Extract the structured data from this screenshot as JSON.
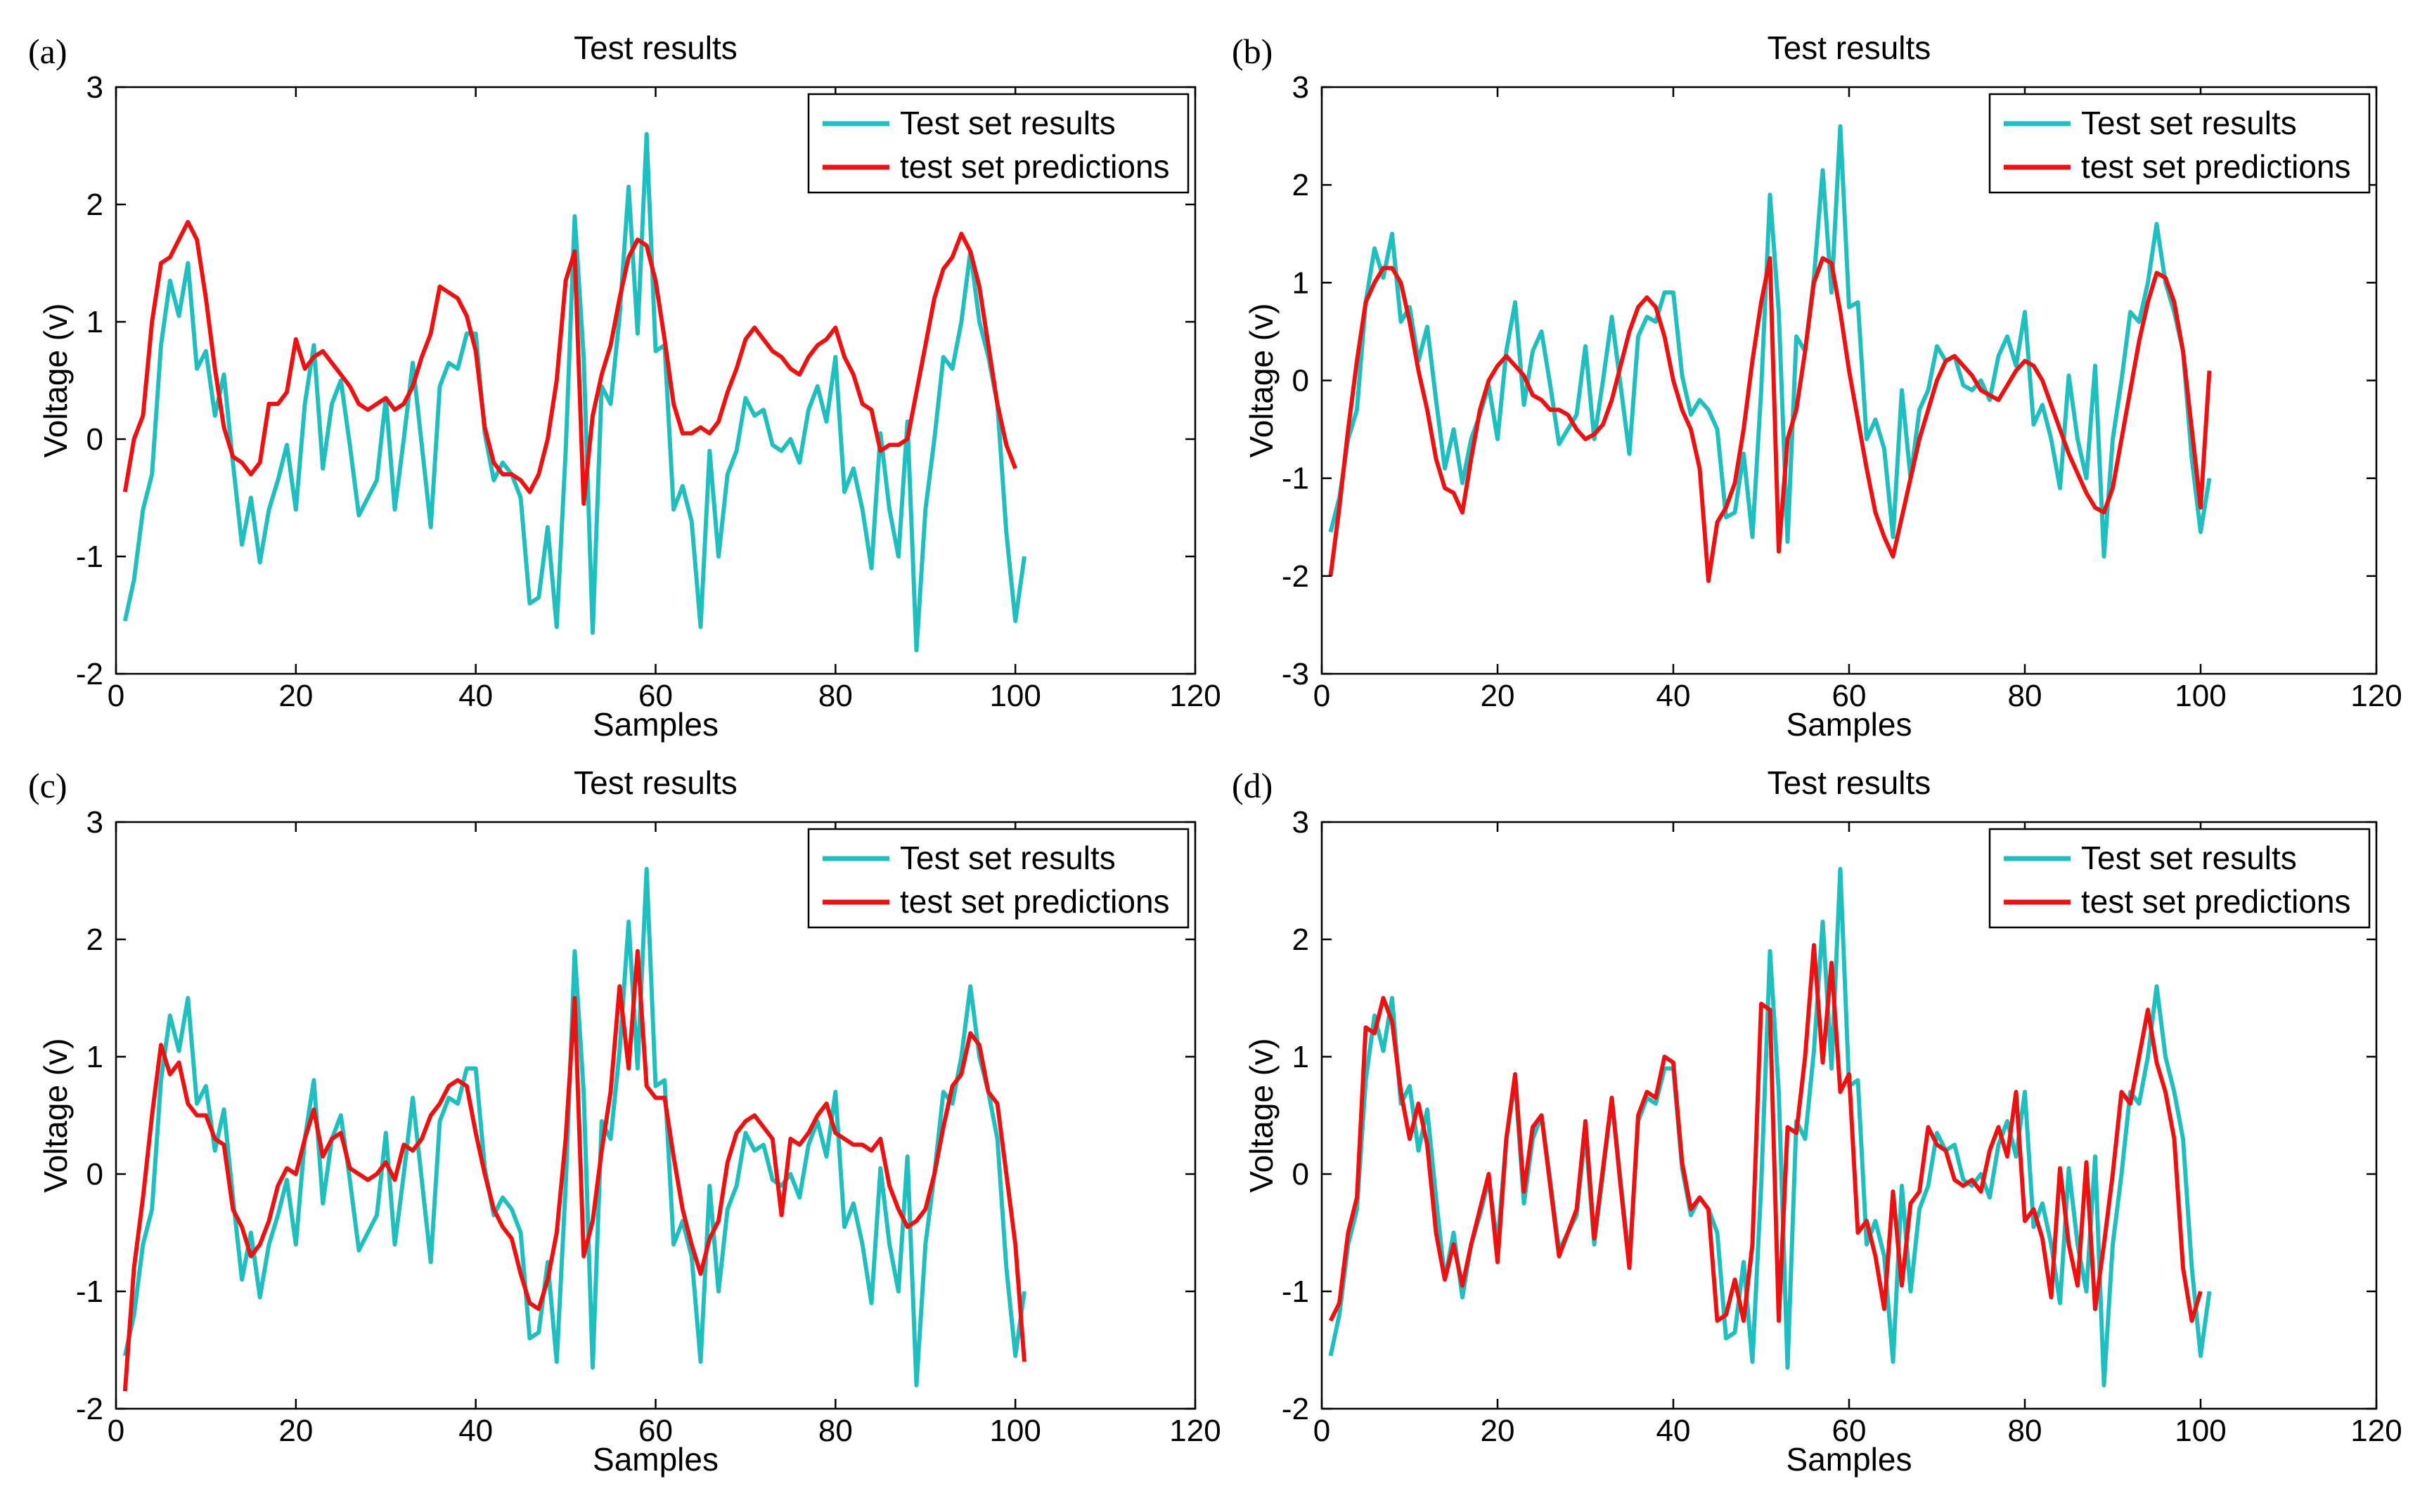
{
  "colors": {
    "results": "#1fbfbf",
    "predictions": "#ee1111"
  },
  "chart_data": [
    {
      "type": "line",
      "panel_label": "(a)",
      "title": "Test results",
      "xlabel": "Samples",
      "ylabel": "Voltage (v)",
      "xlim": [
        0,
        120
      ],
      "ylim": [
        -2,
        3
      ],
      "xticks": [
        0,
        20,
        40,
        60,
        80,
        100,
        120
      ],
      "yticks": [
        -2,
        -1,
        0,
        1,
        2,
        3
      ],
      "legend_position": "top-right",
      "series": [
        {
          "name": "Test set results",
          "color": "#1fbfbf",
          "x_start": 1,
          "values": [
            -1.55,
            -1.2,
            -0.6,
            -0.3,
            0.8,
            1.35,
            1.05,
            1.5,
            0.6,
            0.75,
            0.2,
            0.55,
            -0.2,
            -0.9,
            -0.5,
            -1.05,
            -0.6,
            -0.35,
            -0.05,
            -0.6,
            0.3,
            0.8,
            -0.25,
            0.3,
            0.5,
            -0.05,
            -0.65,
            -0.5,
            -0.35,
            0.35,
            -0.6,
            0.0,
            0.65,
            -0.05,
            -0.75,
            0.45,
            0.65,
            0.6,
            0.9,
            0.9,
            0.05,
            -0.35,
            -0.2,
            -0.3,
            -0.5,
            -1.4,
            -1.35,
            -0.75,
            -1.6,
            -0.1,
            1.9,
            0.7,
            -1.65,
            0.45,
            0.3,
            1.05,
            2.15,
            0.9,
            2.6,
            0.75,
            0.8,
            -0.6,
            -0.4,
            -0.7,
            -1.6,
            -0.1,
            -1.0,
            -0.3,
            -0.1,
            0.35,
            0.2,
            0.25,
            -0.05,
            -0.1,
            0.0,
            -0.2,
            0.25,
            0.45,
            0.15,
            0.7,
            -0.45,
            -0.25,
            -0.6,
            -1.1,
            0.05,
            -0.6,
            -1.0,
            0.15,
            -1.8,
            -0.6,
            0.0,
            0.7,
            0.6,
            1.0,
            1.6,
            1.0,
            0.7,
            0.3,
            -0.8,
            -1.55,
            -1.0
          ]
        },
        {
          "name": "test set predictions",
          "color": "#ee1111",
          "x_start": 1,
          "values": [
            -0.45,
            0.0,
            0.2,
            1.0,
            1.5,
            1.55,
            1.7,
            1.85,
            1.7,
            1.2,
            0.6,
            0.1,
            -0.15,
            -0.2,
            -0.3,
            -0.2,
            0.3,
            0.3,
            0.4,
            0.85,
            0.6,
            0.7,
            0.75,
            0.65,
            0.55,
            0.45,
            0.3,
            0.25,
            0.3,
            0.35,
            0.25,
            0.3,
            0.45,
            0.7,
            0.9,
            1.3,
            1.25,
            1.2,
            1.05,
            0.75,
            0.1,
            -0.2,
            -0.3,
            -0.3,
            -0.35,
            -0.45,
            -0.3,
            0.0,
            0.5,
            1.35,
            1.6,
            -0.55,
            0.2,
            0.55,
            0.8,
            1.2,
            1.55,
            1.7,
            1.65,
            1.35,
            0.85,
            0.3,
            0.05,
            0.05,
            0.1,
            0.05,
            0.15,
            0.4,
            0.6,
            0.85,
            0.95,
            0.85,
            0.75,
            0.7,
            0.6,
            0.55,
            0.7,
            0.8,
            0.85,
            0.95,
            0.7,
            0.55,
            0.3,
            0.25,
            -0.1,
            -0.05,
            -0.05,
            0.0,
            0.4,
            0.8,
            1.2,
            1.45,
            1.55,
            1.75,
            1.6,
            1.3,
            0.8,
            0.3,
            -0.05,
            -0.25
          ]
        }
      ]
    },
    {
      "type": "line",
      "panel_label": "(b)",
      "title": "Test results",
      "xlabel": "Samples",
      "ylabel": "Voltage (v)",
      "xlim": [
        0,
        120
      ],
      "ylim": [
        -3,
        3
      ],
      "xticks": [
        0,
        20,
        40,
        60,
        80,
        100,
        120
      ],
      "yticks": [
        -3,
        -2,
        -1,
        0,
        1,
        2,
        3
      ],
      "legend_position": "top-right",
      "series": [
        {
          "name": "Test set results",
          "color": "#1fbfbf",
          "x_start": 1,
          "values": [
            -1.55,
            -1.2,
            -0.6,
            -0.3,
            0.8,
            1.35,
            1.05,
            1.5,
            0.6,
            0.75,
            0.2,
            0.55,
            -0.2,
            -0.9,
            -0.5,
            -1.05,
            -0.6,
            -0.35,
            -0.05,
            -0.6,
            0.3,
            0.8,
            -0.25,
            0.3,
            0.5,
            -0.05,
            -0.65,
            -0.5,
            -0.35,
            0.35,
            -0.6,
            0.0,
            0.65,
            -0.05,
            -0.75,
            0.45,
            0.65,
            0.6,
            0.9,
            0.9,
            0.05,
            -0.35,
            -0.2,
            -0.3,
            -0.5,
            -1.4,
            -1.35,
            -0.75,
            -1.6,
            -0.1,
            1.9,
            0.7,
            -1.65,
            0.45,
            0.3,
            1.05,
            2.15,
            0.9,
            2.6,
            0.75,
            0.8,
            -0.6,
            -0.4,
            -0.7,
            -1.6,
            -0.1,
            -1.0,
            -0.3,
            -0.1,
            0.35,
            0.2,
            0.25,
            -0.05,
            -0.1,
            0.0,
            -0.2,
            0.25,
            0.45,
            0.15,
            0.7,
            -0.45,
            -0.25,
            -0.6,
            -1.1,
            0.05,
            -0.6,
            -1.0,
            0.15,
            -1.8,
            -0.6,
            0.0,
            0.7,
            0.6,
            1.0,
            1.6,
            1.0,
            0.7,
            0.3,
            -0.8,
            -1.55,
            -1.0
          ]
        },
        {
          "name": "test set predictions",
          "color": "#ee1111",
          "x_start": 1,
          "values": [
            -2.0,
            -1.3,
            -0.5,
            0.2,
            0.8,
            1.0,
            1.15,
            1.15,
            1.0,
            0.6,
            0.1,
            -0.3,
            -0.8,
            -1.1,
            -1.15,
            -1.35,
            -0.8,
            -0.3,
            0.0,
            0.15,
            0.25,
            0.15,
            0.05,
            -0.15,
            -0.2,
            -0.3,
            -0.3,
            -0.35,
            -0.5,
            -0.6,
            -0.55,
            -0.45,
            -0.2,
            0.15,
            0.5,
            0.75,
            0.85,
            0.75,
            0.45,
            0.0,
            -0.3,
            -0.5,
            -0.9,
            -2.05,
            -1.45,
            -1.3,
            -1.05,
            -0.5,
            0.2,
            0.8,
            1.25,
            -1.75,
            -0.6,
            -0.3,
            0.3,
            1.0,
            1.25,
            1.2,
            0.7,
            0.1,
            -0.4,
            -0.9,
            -1.35,
            -1.6,
            -1.8,
            -1.4,
            -1.0,
            -0.6,
            -0.3,
            0.0,
            0.2,
            0.25,
            0.15,
            0.05,
            -0.1,
            -0.15,
            -0.2,
            -0.05,
            0.1,
            0.2,
            0.15,
            0.0,
            -0.25,
            -0.5,
            -0.75,
            -0.95,
            -1.15,
            -1.3,
            -1.35,
            -1.1,
            -0.6,
            -0.1,
            0.4,
            0.8,
            1.1,
            1.05,
            0.8,
            0.3,
            -0.5,
            -1.3,
            0.1
          ]
        }
      ]
    },
    {
      "type": "line",
      "panel_label": "(c)",
      "title": "Test results",
      "xlabel": "Samples",
      "ylabel": "Voltage (v)",
      "xlim": [
        0,
        120
      ],
      "ylim": [
        -2,
        3
      ],
      "xticks": [
        0,
        20,
        40,
        60,
        80,
        100,
        120
      ],
      "yticks": [
        -2,
        -1,
        0,
        1,
        2,
        3
      ],
      "legend_position": "top-right",
      "series": [
        {
          "name": "Test set results",
          "color": "#1fbfbf",
          "x_start": 1,
          "values": [
            -1.55,
            -1.2,
            -0.6,
            -0.3,
            0.8,
            1.35,
            1.05,
            1.5,
            0.6,
            0.75,
            0.2,
            0.55,
            -0.2,
            -0.9,
            -0.5,
            -1.05,
            -0.6,
            -0.35,
            -0.05,
            -0.6,
            0.3,
            0.8,
            -0.25,
            0.3,
            0.5,
            -0.05,
            -0.65,
            -0.5,
            -0.35,
            0.35,
            -0.6,
            0.0,
            0.65,
            -0.05,
            -0.75,
            0.45,
            0.65,
            0.6,
            0.9,
            0.9,
            0.05,
            -0.35,
            -0.2,
            -0.3,
            -0.5,
            -1.4,
            -1.35,
            -0.75,
            -1.6,
            -0.1,
            1.9,
            0.7,
            -1.65,
            0.45,
            0.3,
            1.05,
            2.15,
            0.9,
            2.6,
            0.75,
            0.8,
            -0.6,
            -0.4,
            -0.7,
            -1.6,
            -0.1,
            -1.0,
            -0.3,
            -0.1,
            0.35,
            0.2,
            0.25,
            -0.05,
            -0.1,
            0.0,
            -0.2,
            0.25,
            0.45,
            0.15,
            0.7,
            -0.45,
            -0.25,
            -0.6,
            -1.1,
            0.05,
            -0.6,
            -1.0,
            0.15,
            -1.8,
            -0.6,
            0.0,
            0.7,
            0.6,
            1.0,
            1.6,
            1.0,
            0.7,
            0.3,
            -0.8,
            -1.55,
            -1.0
          ]
        },
        {
          "name": "test set predictions",
          "color": "#ee1111",
          "x_start": 1,
          "values": [
            -1.85,
            -0.8,
            -0.2,
            0.5,
            1.1,
            0.85,
            0.95,
            0.6,
            0.5,
            0.5,
            0.3,
            0.25,
            -0.3,
            -0.45,
            -0.7,
            -0.6,
            -0.4,
            -0.1,
            0.05,
            0.0,
            0.3,
            0.55,
            0.15,
            0.3,
            0.35,
            0.05,
            0.0,
            -0.05,
            0.0,
            0.1,
            -0.05,
            0.25,
            0.2,
            0.3,
            0.5,
            0.6,
            0.75,
            0.8,
            0.75,
            0.35,
            0.0,
            -0.3,
            -0.45,
            -0.55,
            -0.85,
            -1.1,
            -1.15,
            -0.9,
            -0.5,
            0.3,
            1.5,
            -0.7,
            -0.4,
            0.2,
            0.7,
            1.6,
            0.9,
            1.9,
            0.75,
            0.65,
            0.65,
            0.15,
            -0.3,
            -0.6,
            -0.85,
            -0.55,
            -0.4,
            0.1,
            0.35,
            0.45,
            0.5,
            0.4,
            0.3,
            -0.35,
            0.3,
            0.25,
            0.35,
            0.5,
            0.6,
            0.35,
            0.3,
            0.25,
            0.25,
            0.2,
            0.3,
            -0.1,
            -0.3,
            -0.45,
            -0.4,
            -0.3,
            0.0,
            0.4,
            0.75,
            0.85,
            1.2,
            1.1,
            0.7,
            0.6,
            0.0,
            -0.6,
            -1.6
          ]
        }
      ]
    },
    {
      "type": "line",
      "panel_label": "(d)",
      "title": "Test results",
      "xlabel": "Samples",
      "ylabel": "Voltage (v)",
      "xlim": [
        0,
        120
      ],
      "ylim": [
        -2,
        3
      ],
      "xticks": [
        0,
        20,
        40,
        60,
        80,
        100,
        120
      ],
      "yticks": [
        -2,
        -1,
        0,
        1,
        2,
        3
      ],
      "legend_position": "top-right",
      "series": [
        {
          "name": "Test set results",
          "color": "#1fbfbf",
          "x_start": 1,
          "values": [
            -1.55,
            -1.2,
            -0.6,
            -0.3,
            0.8,
            1.35,
            1.05,
            1.5,
            0.6,
            0.75,
            0.2,
            0.55,
            -0.2,
            -0.9,
            -0.5,
            -1.05,
            -0.6,
            -0.35,
            -0.05,
            -0.6,
            0.3,
            0.8,
            -0.25,
            0.3,
            0.5,
            -0.05,
            -0.65,
            -0.5,
            -0.35,
            0.35,
            -0.6,
            0.0,
            0.65,
            -0.05,
            -0.75,
            0.45,
            0.65,
            0.6,
            0.9,
            0.9,
            0.05,
            -0.35,
            -0.2,
            -0.3,
            -0.5,
            -1.4,
            -1.35,
            -0.75,
            -1.6,
            -0.1,
            1.9,
            0.7,
            -1.65,
            0.45,
            0.3,
            1.05,
            2.15,
            0.9,
            2.6,
            0.75,
            0.8,
            -0.6,
            -0.4,
            -0.7,
            -1.6,
            -0.1,
            -1.0,
            -0.3,
            -0.1,
            0.35,
            0.2,
            0.25,
            -0.05,
            -0.1,
            0.0,
            -0.2,
            0.25,
            0.45,
            0.15,
            0.7,
            -0.45,
            -0.25,
            -0.6,
            -1.1,
            0.05,
            -0.6,
            -1.0,
            0.15,
            -1.8,
            -0.6,
            0.0,
            0.7,
            0.6,
            1.0,
            1.6,
            1.0,
            0.7,
            0.3,
            -0.8,
            -1.55,
            -1.0
          ]
        },
        {
          "name": "test set predictions",
          "color": "#ee1111",
          "x_start": 1,
          "values": [
            -1.25,
            -1.1,
            -0.5,
            -0.2,
            1.25,
            1.2,
            1.5,
            1.3,
            0.7,
            0.3,
            0.6,
            0.25,
            -0.5,
            -0.9,
            -0.6,
            -0.95,
            -0.6,
            -0.3,
            0.0,
            -0.75,
            0.3,
            0.85,
            -0.15,
            0.4,
            0.5,
            -0.1,
            -0.7,
            -0.5,
            -0.3,
            0.45,
            -0.55,
            0.05,
            0.65,
            -0.1,
            -0.8,
            0.5,
            0.7,
            0.65,
            1.0,
            0.95,
            0.1,
            -0.3,
            -0.2,
            -0.3,
            -1.25,
            -1.2,
            -0.9,
            -1.25,
            -0.6,
            1.45,
            1.4,
            -1.25,
            0.4,
            0.35,
            1.0,
            1.95,
            0.95,
            1.8,
            0.7,
            0.85,
            -0.5,
            -0.4,
            -0.7,
            -1.15,
            -0.15,
            -0.95,
            -0.25,
            -0.15,
            0.4,
            0.25,
            0.2,
            -0.05,
            -0.1,
            -0.05,
            -0.15,
            0.2,
            0.4,
            0.15,
            0.7,
            -0.4,
            -0.3,
            -0.55,
            -1.05,
            0.05,
            -0.6,
            -0.95,
            0.1,
            -1.15,
            -0.6,
            0.0,
            0.7,
            0.6,
            1.0,
            1.4,
            0.95,
            0.7,
            0.3,
            -0.8,
            -1.25,
            -1.0
          ]
        }
      ]
    }
  ]
}
